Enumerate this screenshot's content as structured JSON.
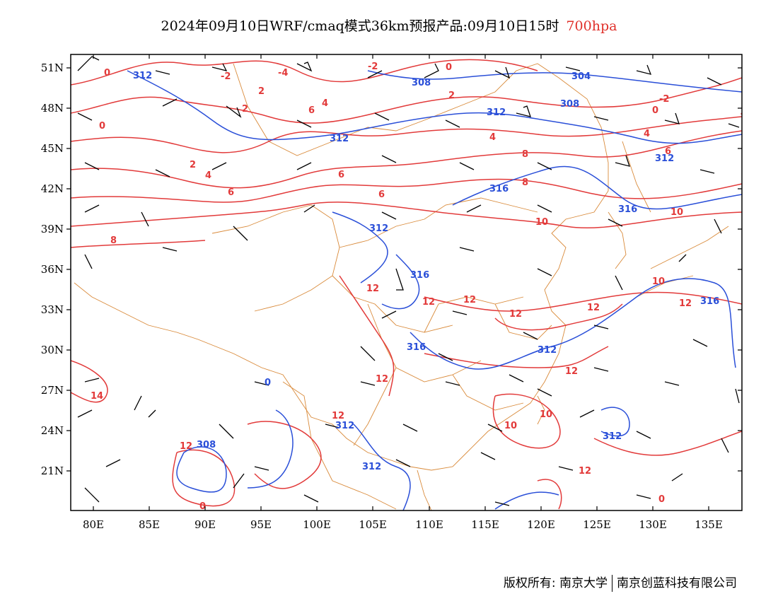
{
  "title": {
    "main": "2024年09月10日WRF/cmaq模式36km预报产品:09月10日15时",
    "level": "700hpa"
  },
  "colors": {
    "temperature_contour": "#e23a3a",
    "height_contour": "#2a4fd8",
    "border": "#d98a3a",
    "wind_barb": "#000000",
    "level_text": "#e0302a"
  },
  "axes": {
    "lat_labels": [
      "51N",
      "48N",
      "45N",
      "42N",
      "39N",
      "36N",
      "33N",
      "30N",
      "27N",
      "24N",
      "21N"
    ],
    "lon_labels": [
      "80E",
      "85E",
      "90E",
      "95E",
      "100E",
      "105E",
      "110E",
      "115E",
      "120E",
      "125E",
      "130E",
      "135E"
    ],
    "lat_range": [
      18,
      52
    ],
    "lon_range": [
      78,
      138
    ]
  },
  "temperature_labels": [
    "0",
    "-2",
    "-4",
    "-2",
    "0",
    "2",
    "0",
    "-2",
    "0",
    "2",
    "4",
    "6",
    "4",
    "2",
    "4",
    "6",
    "8",
    "6",
    "4",
    "2",
    "6",
    "8",
    "6",
    "10",
    "8",
    "10",
    "12",
    "12",
    "12",
    "12",
    "10",
    "12",
    "12",
    "12",
    "14",
    "12",
    "12",
    "12",
    "10",
    "10",
    "12",
    "0",
    "0"
  ],
  "height_labels": [
    "312",
    "308",
    "304",
    "308",
    "312",
    "312",
    "312",
    "316",
    "316",
    "312",
    "316",
    "316",
    "316",
    "312",
    "312",
    "308",
    "312",
    "312",
    "0"
  ],
  "footer": {
    "copyright": "版权所有: 南京大学",
    "company": "南京创蓝科技有限公司"
  }
}
